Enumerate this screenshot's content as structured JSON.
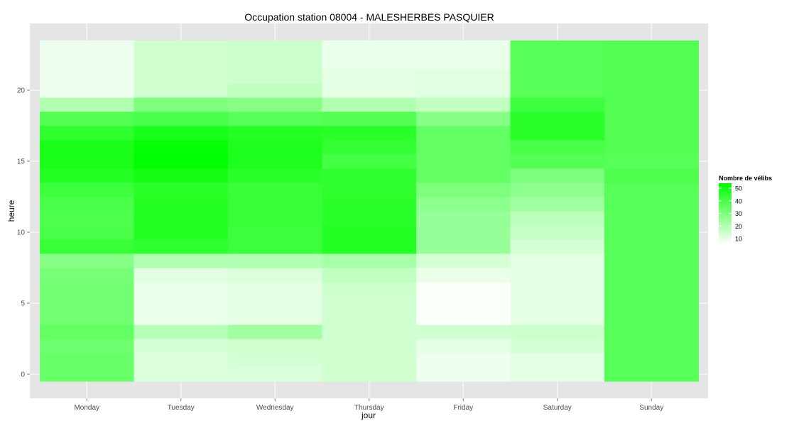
{
  "chart_data": {
    "type": "heatmap",
    "title": "Occupation station 08004 - MALESHERBES PASQUIER",
    "xlabel": "jour",
    "ylabel": "heure",
    "x": [
      "Monday",
      "Tuesday",
      "Wednesday",
      "Thursday",
      "Friday",
      "Saturday",
      "Sunday"
    ],
    "y": [
      0,
      1,
      2,
      3,
      4,
      5,
      6,
      7,
      8,
      9,
      10,
      11,
      12,
      13,
      14,
      15,
      16,
      17,
      18,
      19,
      20,
      21,
      22,
      23
    ],
    "y_ticks": [
      0,
      5,
      10,
      15,
      20
    ],
    "ylim": [
      -1,
      24
    ],
    "grid": true,
    "legend": {
      "title": "Nombre de vélibs",
      "position": "right",
      "breaks": [
        10,
        20,
        30,
        40,
        50
      ],
      "range": [
        5,
        54
      ],
      "low_color": "#ffffff",
      "high_color": "#00ff00"
    },
    "values": [
      [
        34,
        12,
        12,
        14,
        8,
        10,
        37
      ],
      [
        34,
        12,
        13,
        14,
        8,
        10,
        37
      ],
      [
        33,
        13,
        14,
        14,
        10,
        13,
        37
      ],
      [
        35,
        19,
        23,
        14,
        14,
        15,
        37
      ],
      [
        32,
        9,
        10,
        14,
        6,
        10,
        37
      ],
      [
        32,
        9,
        10,
        14,
        6,
        10,
        37
      ],
      [
        32,
        9,
        10,
        15,
        6,
        10,
        37
      ],
      [
        31,
        11,
        12,
        17,
        9,
        10,
        37
      ],
      [
        28,
        20,
        20,
        22,
        13,
        10,
        37
      ],
      [
        43,
        45,
        42,
        47,
        25,
        13,
        37
      ],
      [
        40,
        47,
        42,
        47,
        25,
        16,
        37
      ],
      [
        39,
        47,
        43,
        46,
        25,
        18,
        37
      ],
      [
        40,
        47,
        43,
        46,
        27,
        23,
        37
      ],
      [
        42,
        46,
        43,
        45,
        30,
        27,
        37
      ],
      [
        47,
        50,
        46,
        45,
        35,
        30,
        39
      ],
      [
        49,
        54,
        48,
        41,
        35,
        38,
        37
      ],
      [
        49,
        53,
        48,
        44,
        35,
        40,
        38
      ],
      [
        45,
        49,
        47,
        46,
        35,
        46,
        38
      ],
      [
        38,
        40,
        37,
        38,
        28,
        46,
        38
      ],
      [
        20,
        30,
        28,
        20,
        17,
        42,
        38
      ],
      [
        8,
        14,
        17,
        10,
        11,
        37,
        38
      ],
      [
        8,
        14,
        15,
        10,
        11,
        37,
        38
      ],
      [
        8,
        14,
        15,
        9,
        9,
        37,
        38
      ],
      [
        8,
        14,
        15,
        9,
        9,
        37,
        38
      ]
    ]
  }
}
